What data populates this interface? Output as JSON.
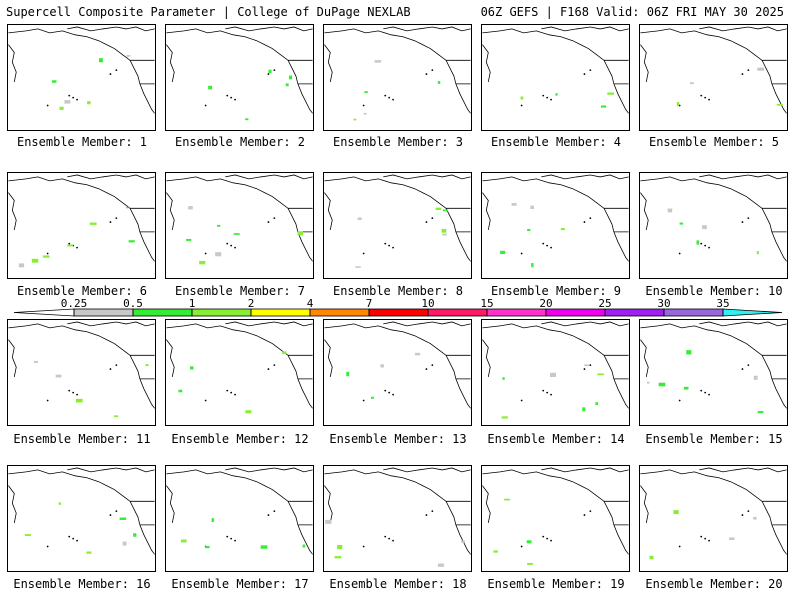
{
  "header": {
    "left_title": "Supercell Composite Parameter | College of DuPage NEXLAB",
    "right_title": "06Z GEFS | F168 Valid: 06Z FRI MAY 30 2025"
  },
  "members": [
    {
      "label": "Ensemble Member: 1"
    },
    {
      "label": "Ensemble Member: 2"
    },
    {
      "label": "Ensemble Member: 3"
    },
    {
      "label": "Ensemble Member: 4"
    },
    {
      "label": "Ensemble Member: 5"
    },
    {
      "label": "Ensemble Member: 6"
    },
    {
      "label": "Ensemble Member: 7"
    },
    {
      "label": "Ensemble Member: 8"
    },
    {
      "label": "Ensemble Member: 9"
    },
    {
      "label": "Ensemble Member: 10"
    },
    {
      "label": "Ensemble Member: 11"
    },
    {
      "label": "Ensemble Member: 12"
    },
    {
      "label": "Ensemble Member: 13"
    },
    {
      "label": "Ensemble Member: 14"
    },
    {
      "label": "Ensemble Member: 15"
    },
    {
      "label": "Ensemble Member: 16"
    },
    {
      "label": "Ensemble Member: 17"
    },
    {
      "label": "Ensemble Member: 18"
    },
    {
      "label": "Ensemble Member: 19"
    },
    {
      "label": "Ensemble Member: 20"
    }
  ],
  "colorbar": {
    "ticks": [
      "0.25",
      "0.5",
      "1",
      "2",
      "4",
      "7",
      "10",
      "15",
      "20",
      "25",
      "30",
      "35"
    ],
    "colors": [
      "#c8c8c8",
      "#33ee33",
      "#88ee33",
      "#ffff00",
      "#ff8800",
      "#ff0000",
      "#ff1a66",
      "#ff33cc",
      "#ee00ee",
      "#a020f0",
      "#9966dd",
      "#33eeee"
    ]
  }
}
